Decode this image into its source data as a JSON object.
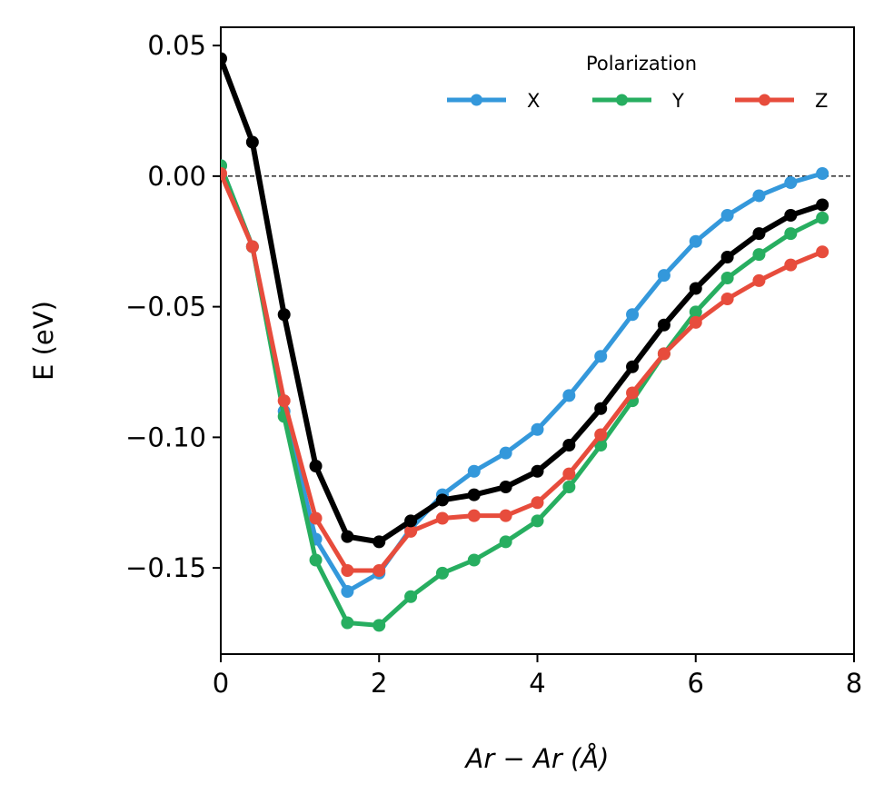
{
  "chart_data": {
    "type": "line",
    "title": "",
    "xlabel": "Ar − Ar (Å)",
    "ylabel": "E (eV)",
    "xlim": [
      0,
      8
    ],
    "ylim": [
      -0.183,
      0.057
    ],
    "xticks": [
      0,
      2,
      4,
      6,
      8
    ],
    "xtick_labels": [
      "0",
      "2",
      "4",
      "6",
      "8"
    ],
    "yticks": [
      0.05,
      0.0,
      -0.05,
      -0.1,
      -0.15
    ],
    "ytick_labels": [
      "0.05",
      "0.00",
      "−0.05",
      "−0.10",
      "−0.15"
    ],
    "reference_line": {
      "y": 0,
      "style": "dashed",
      "color": "#000000"
    },
    "grid": false,
    "legend": {
      "title": "Polarization",
      "placement": "top-right",
      "ncol": 3
    },
    "series": [
      {
        "name": "X",
        "color": "#3498db",
        "in_legend": true,
        "x": [
          0,
          0.4,
          0.8,
          1.2,
          1.6,
          2.0,
          2.4,
          2.8,
          3.2,
          3.6,
          4.0,
          4.4,
          4.8,
          5.2,
          5.6,
          6.0,
          6.4,
          6.8,
          7.2,
          7.6
        ],
        "y": [
          0.004,
          -0.027,
          -0.09,
          -0.139,
          -0.159,
          -0.152,
          -0.135,
          -0.122,
          -0.113,
          -0.106,
          -0.097,
          -0.084,
          -0.069,
          -0.053,
          -0.038,
          -0.025,
          -0.015,
          -0.0075,
          -0.0025,
          0.001
        ]
      },
      {
        "name": "Y",
        "color": "#27ae60",
        "in_legend": true,
        "x": [
          0,
          0.4,
          0.8,
          1.2,
          1.6,
          2.0,
          2.4,
          2.8,
          3.2,
          3.6,
          4.0,
          4.4,
          4.8,
          5.2,
          5.6,
          6.0,
          6.4,
          6.8,
          7.2,
          7.6
        ],
        "y": [
          0.004,
          -0.027,
          -0.092,
          -0.147,
          -0.171,
          -0.172,
          -0.161,
          -0.152,
          -0.147,
          -0.14,
          -0.132,
          -0.119,
          -0.103,
          -0.086,
          -0.068,
          -0.052,
          -0.039,
          -0.03,
          -0.022,
          -0.016
        ]
      },
      {
        "name": "Z",
        "color": "#e74c3c",
        "in_legend": true,
        "x": [
          0,
          0.4,
          0.8,
          1.2,
          1.6,
          2.0,
          2.4,
          2.8,
          3.2,
          3.6,
          4.0,
          4.4,
          4.8,
          5.2,
          5.6,
          6.0,
          6.4,
          6.8,
          7.2,
          7.6
        ],
        "y": [
          0.001,
          -0.027,
          -0.086,
          -0.131,
          -0.151,
          -0.151,
          -0.136,
          -0.131,
          -0.13,
          -0.13,
          -0.125,
          -0.114,
          -0.099,
          -0.083,
          -0.068,
          -0.056,
          -0.047,
          -0.04,
          -0.034,
          -0.029
        ]
      },
      {
        "name": "",
        "color": "#000000",
        "in_legend": false,
        "x": [
          0,
          0.4,
          0.8,
          1.2,
          1.6,
          2.0,
          2.4,
          2.8,
          3.2,
          3.6,
          4.0,
          4.4,
          4.8,
          5.2,
          5.6,
          6.0,
          6.4,
          6.8,
          7.2,
          7.6
        ],
        "y": [
          0.045,
          0.013,
          -0.053,
          -0.111,
          -0.138,
          -0.14,
          -0.132,
          -0.124,
          -0.122,
          -0.119,
          -0.113,
          -0.103,
          -0.089,
          -0.073,
          -0.057,
          -0.043,
          -0.031,
          -0.022,
          -0.015,
          -0.011
        ]
      }
    ]
  }
}
